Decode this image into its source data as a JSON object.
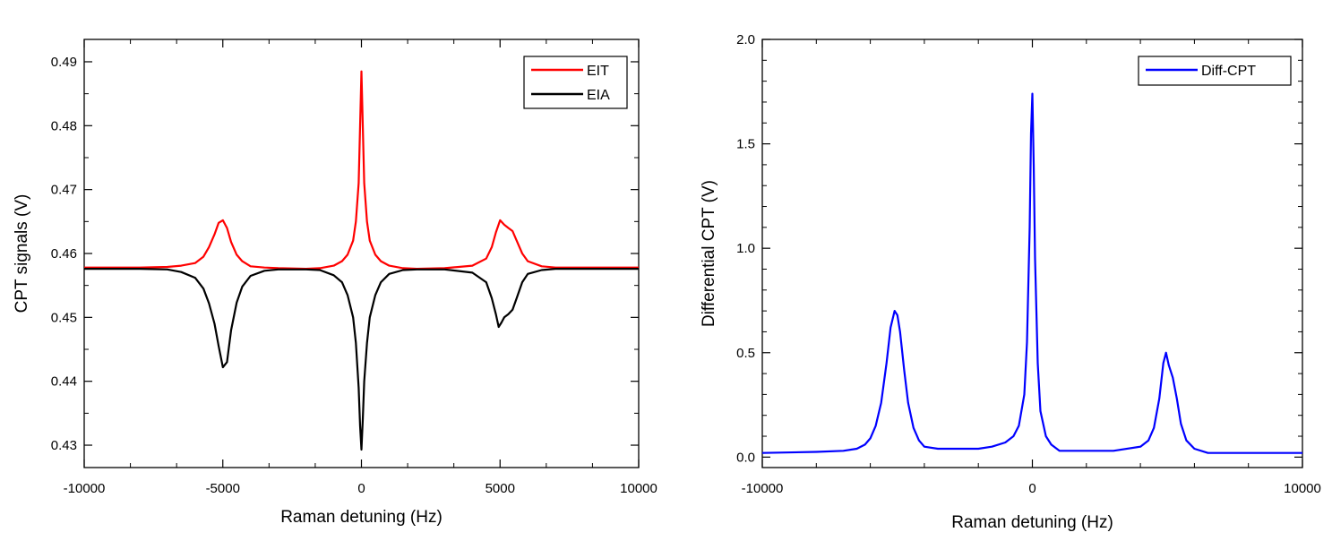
{
  "chart_data": [
    {
      "type": "line",
      "title": "",
      "xlabel": "Raman detuning (Hz)",
      "ylabel": "CPT signals (V)",
      "xlim": [
        -10000,
        10000
      ],
      "ylim": [
        0.4265,
        0.4935
      ],
      "xticks": [
        "-10000",
        "-5000",
        "0",
        "5000",
        "10000"
      ],
      "yticks": [
        "0.43",
        "0.44",
        "0.45",
        "0.46",
        "0.47",
        "0.48",
        "0.49"
      ],
      "legend_position": "top-right",
      "grid": false,
      "series": [
        {
          "name": "EIT",
          "color": "#ff0000",
          "x": [
            -10000,
            -8000,
            -7000,
            -6500,
            -6000,
            -5700,
            -5500,
            -5300,
            -5150,
            -5000,
            -4850,
            -4700,
            -4500,
            -4300,
            -4000,
            -3500,
            -3000,
            -2000,
            -1500,
            -1000,
            -700,
            -500,
            -300,
            -200,
            -100,
            -50,
            0,
            50,
            100,
            200,
            300,
            500,
            700,
            1000,
            1500,
            2000,
            3000,
            4000,
            4500,
            4700,
            4850,
            5000,
            5150,
            5300,
            5450,
            5600,
            5800,
            6000,
            6500,
            7000,
            8000,
            10000
          ],
          "y": [
            0.4578,
            0.4578,
            0.4579,
            0.4581,
            0.4585,
            0.4595,
            0.461,
            0.463,
            0.4648,
            0.4652,
            0.464,
            0.4618,
            0.4598,
            0.4588,
            0.458,
            0.4578,
            0.4577,
            0.4576,
            0.4577,
            0.4581,
            0.4588,
            0.4598,
            0.462,
            0.465,
            0.471,
            0.48,
            0.4885,
            0.48,
            0.471,
            0.465,
            0.462,
            0.4598,
            0.4588,
            0.4581,
            0.4577,
            0.4576,
            0.4577,
            0.4581,
            0.4592,
            0.461,
            0.4633,
            0.4652,
            0.4645,
            0.464,
            0.4635,
            0.462,
            0.46,
            0.4588,
            0.458,
            0.4578,
            0.4578,
            0.4578
          ]
        },
        {
          "name": "EIA",
          "color": "#000000",
          "x": [
            -10000,
            -8000,
            -7000,
            -6500,
            -6000,
            -5700,
            -5500,
            -5300,
            -5150,
            -5000,
            -4850,
            -4700,
            -4500,
            -4300,
            -4000,
            -3500,
            -3000,
            -2000,
            -1500,
            -1000,
            -700,
            -500,
            -300,
            -200,
            -100,
            -50,
            0,
            50,
            100,
            200,
            300,
            500,
            700,
            1000,
            1500,
            2000,
            3000,
            4000,
            4500,
            4700,
            4850,
            4950,
            5050,
            5150,
            5300,
            5450,
            5600,
            5800,
            6000,
            6500,
            7000,
            8000,
            10000
          ],
          "y": [
            0.4576,
            0.4576,
            0.4575,
            0.4571,
            0.4562,
            0.4545,
            0.4522,
            0.449,
            0.4455,
            0.4422,
            0.443,
            0.448,
            0.4523,
            0.4548,
            0.4565,
            0.4573,
            0.4575,
            0.4575,
            0.4574,
            0.4566,
            0.4555,
            0.4535,
            0.45,
            0.446,
            0.439,
            0.433,
            0.4293,
            0.434,
            0.44,
            0.446,
            0.45,
            0.4535,
            0.4555,
            0.4568,
            0.4574,
            0.4575,
            0.4575,
            0.457,
            0.4555,
            0.453,
            0.4505,
            0.4485,
            0.4492,
            0.45,
            0.4505,
            0.4512,
            0.453,
            0.4555,
            0.4568,
            0.4574,
            0.4576,
            0.4576,
            0.4576
          ]
        }
      ]
    },
    {
      "type": "line",
      "title": "",
      "xlabel": "Raman detuning (Hz)",
      "ylabel": "Differential CPT (V)",
      "xlim": [
        -10000,
        10000
      ],
      "ylim": [
        -0.05,
        2.0
      ],
      "xticks": [
        "-10000",
        "0",
        "10000"
      ],
      "yticks": [
        "0.0",
        "0.5",
        "1.0",
        "1.5",
        "2.0"
      ],
      "legend_position": "top-right",
      "grid": false,
      "series": [
        {
          "name": "Diff-CPT",
          "color": "#0000ff",
          "x": [
            -10000,
            -8000,
            -7000,
            -6500,
            -6200,
            -6000,
            -5800,
            -5600,
            -5400,
            -5250,
            -5100,
            -5000,
            -4900,
            -4750,
            -4600,
            -4400,
            -4200,
            -4000,
            -3500,
            -3000,
            -2500,
            -2000,
            -1500,
            -1000,
            -700,
            -500,
            -300,
            -200,
            -100,
            -50,
            0,
            50,
            100,
            200,
            300,
            500,
            700,
            1000,
            1500,
            2000,
            3000,
            4000,
            4300,
            4500,
            4700,
            4850,
            4950,
            5050,
            5200,
            5350,
            5500,
            5700,
            6000,
            6500,
            7000,
            8000,
            10000
          ],
          "y": [
            0.02,
            0.025,
            0.03,
            0.04,
            0.06,
            0.09,
            0.15,
            0.26,
            0.45,
            0.62,
            0.7,
            0.68,
            0.6,
            0.42,
            0.26,
            0.14,
            0.08,
            0.05,
            0.04,
            0.04,
            0.04,
            0.04,
            0.05,
            0.07,
            0.1,
            0.15,
            0.3,
            0.55,
            1.1,
            1.55,
            1.74,
            1.4,
            0.95,
            0.45,
            0.22,
            0.1,
            0.06,
            0.03,
            0.03,
            0.03,
            0.03,
            0.05,
            0.08,
            0.14,
            0.28,
            0.45,
            0.5,
            0.44,
            0.38,
            0.28,
            0.16,
            0.08,
            0.04,
            0.02,
            0.02,
            0.02,
            0.02
          ]
        }
      ]
    }
  ]
}
